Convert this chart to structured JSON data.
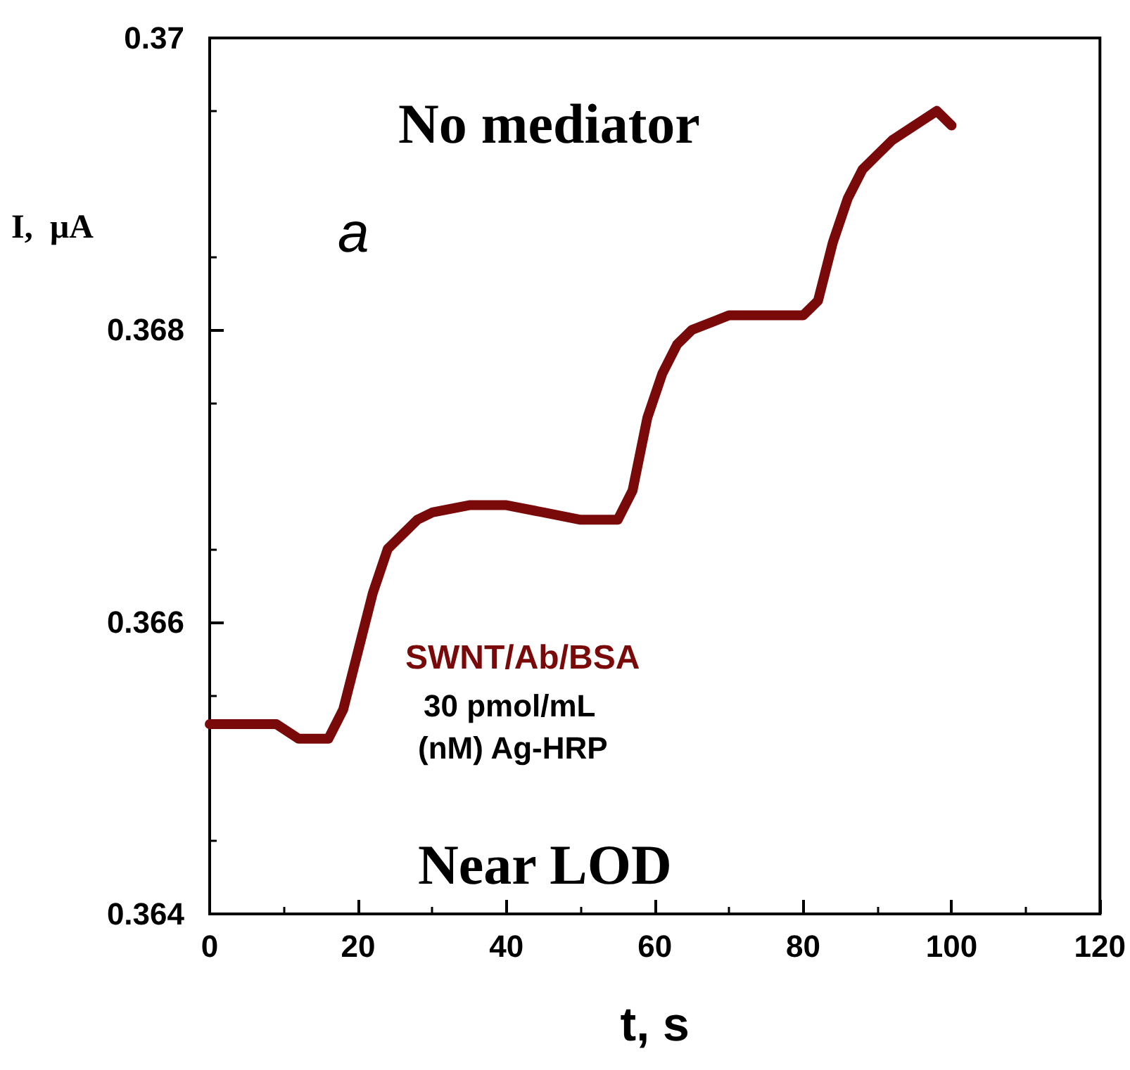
{
  "chart_data": {
    "type": "line",
    "xlabel": "t, s",
    "ylabel": "I,  µA",
    "x": [
      0,
      3,
      6,
      9,
      12,
      14,
      16,
      18,
      20,
      22,
      24,
      26,
      28,
      30,
      35,
      40,
      45,
      50,
      53,
      55,
      57,
      59,
      61,
      63,
      65,
      70,
      75,
      80,
      82,
      84,
      86,
      88,
      90,
      92,
      95,
      98,
      100
    ],
    "series": [
      {
        "color": "#7a0a0a",
        "values": [
          0.3653,
          0.3653,
          0.3653,
          0.3653,
          0.3652,
          0.3652,
          0.3652,
          0.3654,
          0.3658,
          0.3662,
          0.3665,
          0.3666,
          0.3667,
          0.36675,
          0.3668,
          0.3668,
          0.36675,
          0.3667,
          0.3667,
          0.3667,
          0.3669,
          0.3674,
          0.3677,
          0.3679,
          0.368,
          0.3681,
          0.3681,
          0.3681,
          0.3682,
          0.3686,
          0.3689,
          0.3691,
          0.3692,
          0.3693,
          0.3694,
          0.3695,
          0.3694
        ]
      }
    ],
    "xlim": [
      0,
      120
    ],
    "xticks": [
      0,
      20,
      40,
      60,
      80,
      100,
      120
    ],
    "ylim": [
      0.364,
      0.37
    ],
    "yticks": [
      0.364,
      0.366,
      0.368,
      0.37
    ],
    "grid": false,
    "line_style": "solid",
    "annotations": [
      "No mediator",
      "a",
      "SWNT/Ab/BSA",
      "30 pmol/mL",
      "(nM) Ag-HRP",
      "Near LOD"
    ]
  }
}
